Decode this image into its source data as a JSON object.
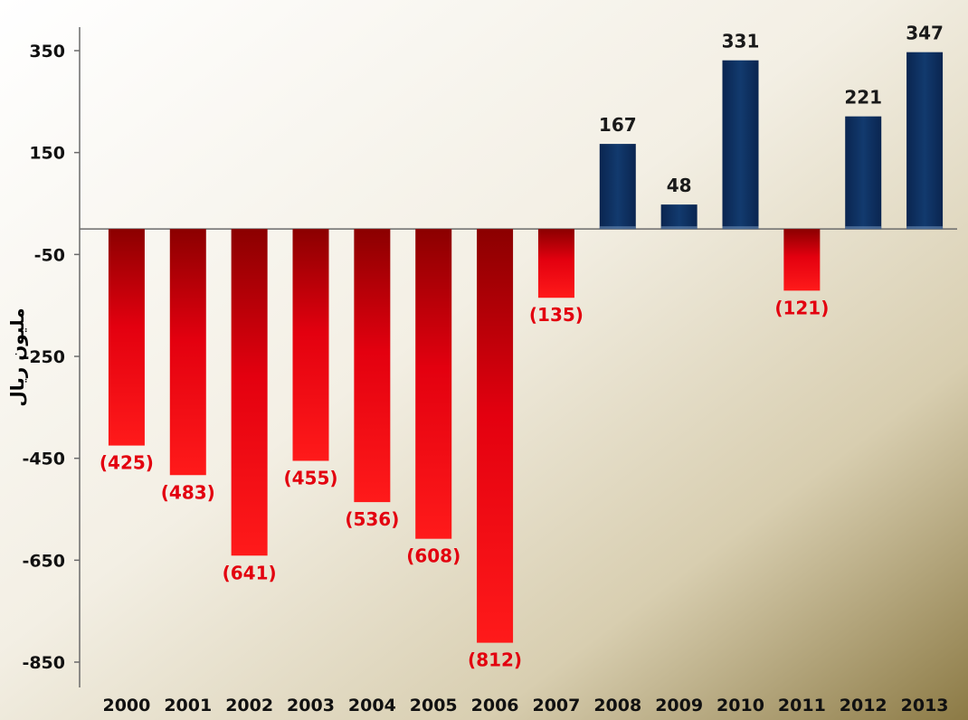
{
  "chart_data": {
    "type": "bar",
    "title": "",
    "xlabel": "",
    "ylabel": "مليون ريال",
    "categories": [
      "2000",
      "2001",
      "2002",
      "2003",
      "2004",
      "2005",
      "2006",
      "2007",
      "2008",
      "2009",
      "2010",
      "2011",
      "2012",
      "2013"
    ],
    "values": [
      -425,
      -483,
      -641,
      -455,
      -536,
      -608,
      -812,
      -135,
      167,
      48,
      331,
      -121,
      221,
      347
    ],
    "data_labels": [
      "(425)",
      "(483)",
      "(641)",
      "(455)",
      "(536)",
      "(608)",
      "(812)",
      "(135)",
      "167",
      "48",
      "331",
      "(121)",
      "221",
      "347"
    ],
    "ylim": [
      -850,
      350
    ],
    "yticks": [
      350,
      150,
      -50,
      -250,
      -450,
      -650,
      -850
    ],
    "grid": false,
    "colors": {
      "negative": "#e3000f",
      "negative_dark": "#8b0000",
      "positive": "#0d2f5c",
      "negative_label": "#e3000f",
      "positive_label": "#1a1a1a",
      "axis": "#6b6b6b",
      "background_light": "#ffffff",
      "background_dark": "#8c7a45"
    }
  }
}
